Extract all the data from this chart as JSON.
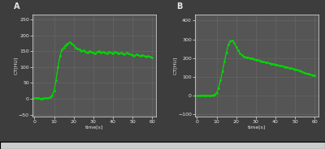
{
  "fig_bg_color": "#3d3d3d",
  "plot_bg_color": "#555555",
  "grid_color": "#6a6a6a",
  "line_color": "#00dd00",
  "text_color": "#e8e8e8",
  "bottom_border_color": "#d0d0d0",
  "panel_A_label": "A",
  "panel_B_label": "B",
  "ylabel": "CT[HU]",
  "xlabel": "time[s]",
  "panel_A": {
    "xlim": [
      -1,
      62
    ],
    "ylim": [
      -55,
      265
    ],
    "yticks": [
      -50,
      0,
      50,
      100,
      150,
      200,
      250
    ],
    "xticks": [
      0,
      10,
      20,
      30,
      40,
      50,
      60
    ],
    "x": [
      0,
      1,
      2,
      3,
      4,
      5,
      6,
      7,
      8,
      9,
      10,
      11,
      12,
      13,
      14,
      15,
      16,
      17,
      18,
      19,
      20,
      21,
      22,
      23,
      24,
      25,
      26,
      27,
      28,
      29,
      30,
      31,
      32,
      33,
      34,
      35,
      36,
      37,
      38,
      39,
      40,
      41,
      42,
      43,
      44,
      45,
      46,
      47,
      48,
      49,
      50,
      51,
      52,
      53,
      54,
      55,
      56,
      57,
      58,
      59,
      60
    ],
    "y": [
      2,
      2,
      2,
      1,
      1,
      2,
      2,
      3,
      5,
      10,
      25,
      60,
      100,
      135,
      155,
      162,
      170,
      175,
      178,
      175,
      168,
      162,
      158,
      155,
      150,
      153,
      148,
      145,
      150,
      148,
      145,
      142,
      148,
      150,
      145,
      148,
      145,
      143,
      148,
      145,
      143,
      148,
      145,
      143,
      145,
      142,
      140,
      145,
      142,
      140,
      138,
      136,
      140,
      138,
      135,
      138,
      135,
      133,
      135,
      132,
      130
    ]
  },
  "panel_B": {
    "xlim": [
      -1,
      62
    ],
    "ylim": [
      -110,
      430
    ],
    "yticks": [
      -100,
      0,
      100,
      200,
      300,
      400
    ],
    "xticks": [
      0,
      10,
      20,
      30,
      40,
      50,
      60
    ],
    "x": [
      0,
      1,
      2,
      3,
      4,
      5,
      6,
      7,
      8,
      9,
      10,
      11,
      12,
      13,
      14,
      15,
      16,
      17,
      18,
      19,
      20,
      21,
      22,
      23,
      24,
      25,
      26,
      27,
      28,
      29,
      30,
      31,
      32,
      33,
      34,
      35,
      36,
      37,
      38,
      39,
      40,
      41,
      42,
      43,
      44,
      45,
      46,
      47,
      48,
      49,
      50,
      51,
      52,
      53,
      54,
      55,
      56,
      57,
      58,
      59,
      60
    ],
    "y": [
      0,
      0,
      0,
      0,
      0,
      0,
      0,
      0,
      2,
      5,
      15,
      40,
      80,
      130,
      180,
      230,
      270,
      290,
      295,
      280,
      260,
      240,
      225,
      215,
      208,
      205,
      202,
      200,
      198,
      196,
      192,
      190,
      185,
      182,
      180,
      178,
      175,
      172,
      170,
      168,
      165,
      162,
      160,
      158,
      155,
      153,
      150,
      148,
      145,
      143,
      140,
      138,
      135,
      130,
      125,
      120,
      118,
      115,
      112,
      110,
      108
    ]
  }
}
